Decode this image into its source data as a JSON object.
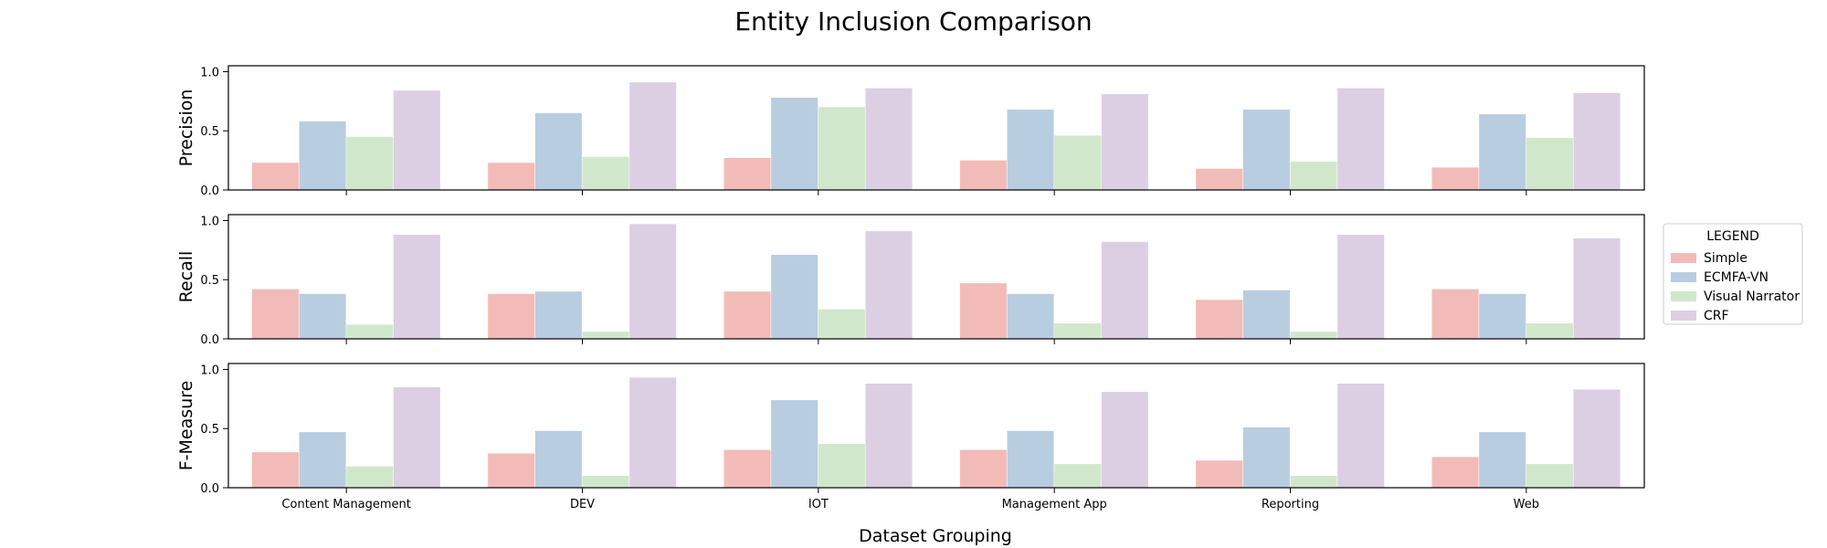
{
  "chart_data": {
    "type": "bar",
    "title": "Entity Inclusion Comparison",
    "xlabel": "Dataset Grouping",
    "categories": [
      "Content Management",
      "DEV",
      "IOT",
      "Management App",
      "Reporting",
      "Web"
    ],
    "legend": {
      "title": "LEGEND",
      "placement": "right",
      "entries": [
        "Simple",
        "ECMFA-VN",
        "Visual Narrator",
        "CRF"
      ]
    },
    "series_colors": [
      "#f2bbb8",
      "#b9cde0",
      "#d1e7cc",
      "#dccfe3"
    ],
    "grid": false,
    "panels": [
      {
        "ylabel": "Precision",
        "ylim": [
          0,
          1.05
        ],
        "yticks": [
          "0.0",
          "0.5",
          "1.0"
        ],
        "series": [
          {
            "name": "Simple",
            "values": [
              0.23,
              0.23,
              0.27,
              0.25,
              0.18,
              0.19
            ]
          },
          {
            "name": "ECMFA-VN",
            "values": [
              0.58,
              0.65,
              0.78,
              0.68,
              0.68,
              0.64
            ]
          },
          {
            "name": "Visual Narrator",
            "values": [
              0.45,
              0.28,
              0.7,
              0.46,
              0.24,
              0.44
            ]
          },
          {
            "name": "CRF",
            "values": [
              0.84,
              0.91,
              0.86,
              0.81,
              0.86,
              0.82
            ]
          }
        ]
      },
      {
        "ylabel": "Recall",
        "ylim": [
          0,
          1.05
        ],
        "yticks": [
          "0.0",
          "0.5",
          "1.0"
        ],
        "series": [
          {
            "name": "Simple",
            "values": [
              0.42,
              0.38,
              0.4,
              0.47,
              0.33,
              0.42
            ]
          },
          {
            "name": "ECMFA-VN",
            "values": [
              0.38,
              0.4,
              0.71,
              0.38,
              0.41,
              0.38
            ]
          },
          {
            "name": "Visual Narrator",
            "values": [
              0.12,
              0.06,
              0.25,
              0.13,
              0.06,
              0.13
            ]
          },
          {
            "name": "CRF",
            "values": [
              0.88,
              0.97,
              0.91,
              0.82,
              0.88,
              0.85
            ]
          }
        ]
      },
      {
        "ylabel": "F-Measure",
        "ylim": [
          0,
          1.05
        ],
        "yticks": [
          "0.0",
          "0.5",
          "1.0"
        ],
        "series": [
          {
            "name": "Simple",
            "values": [
              0.3,
              0.29,
              0.32,
              0.32,
              0.23,
              0.26
            ]
          },
          {
            "name": "ECMFA-VN",
            "values": [
              0.47,
              0.48,
              0.74,
              0.48,
              0.51,
              0.47
            ]
          },
          {
            "name": "Visual Narrator",
            "values": [
              0.18,
              0.1,
              0.37,
              0.2,
              0.1,
              0.2
            ]
          },
          {
            "name": "CRF",
            "values": [
              0.85,
              0.93,
              0.88,
              0.81,
              0.88,
              0.83
            ]
          }
        ]
      }
    ]
  }
}
